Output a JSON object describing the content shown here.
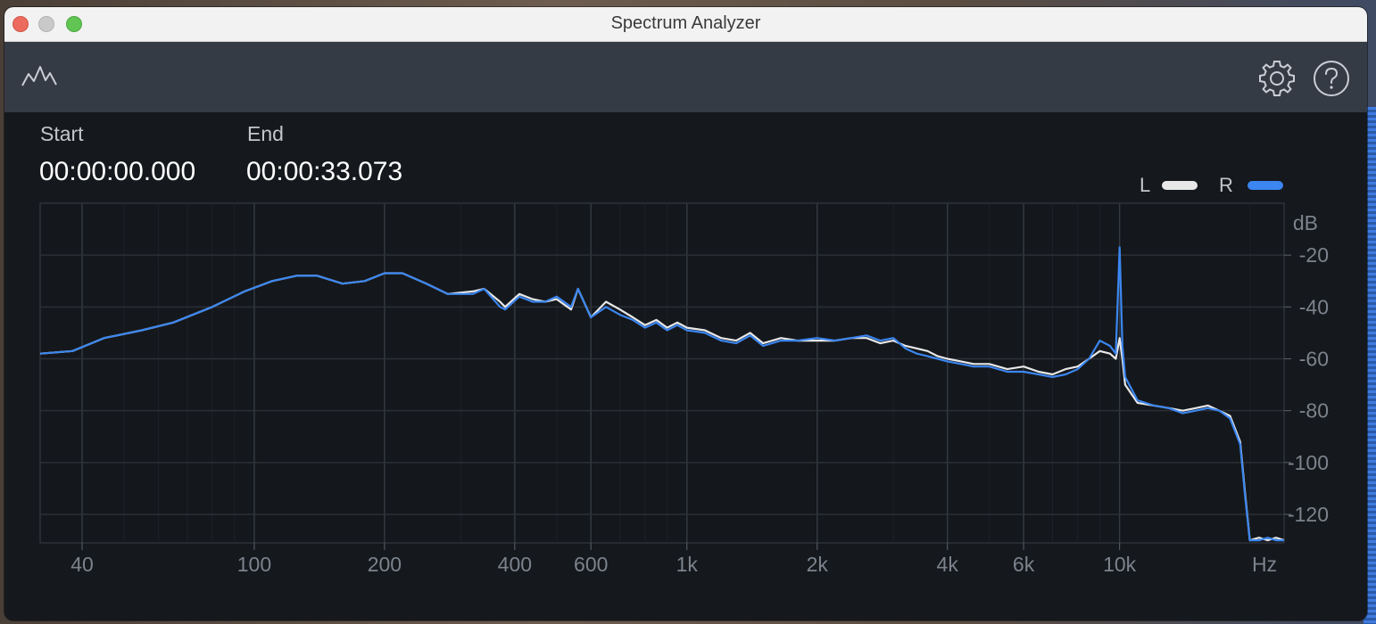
{
  "window": {
    "title": "Spectrum Analyzer"
  },
  "toolbar": {
    "left_icon": "spectrum-waveform-icon",
    "right_icons": [
      "gear-icon",
      "help-icon"
    ]
  },
  "time_range": {
    "start_label": "Start",
    "start_value": "00:00:00.000",
    "end_label": "End",
    "end_value": "00:00:33.073"
  },
  "legend": {
    "left_label": "L",
    "left_color": "#e8e8e8",
    "right_label": "R",
    "right_color": "#3b86f0"
  },
  "chart_data": {
    "type": "line",
    "x_scale": "log",
    "y_unit": "dB",
    "x_unit": "Hz",
    "xlim": [
      32,
      24000
    ],
    "ylim": [
      -131,
      0
    ],
    "x_ticks": [
      {
        "value": 40,
        "label": "40"
      },
      {
        "value": 100,
        "label": "100"
      },
      {
        "value": 200,
        "label": "200"
      },
      {
        "value": 400,
        "label": "400"
      },
      {
        "value": 600,
        "label": "600"
      },
      {
        "value": 1000,
        "label": "1k"
      },
      {
        "value": 2000,
        "label": "2k"
      },
      {
        "value": 4000,
        "label": "4k"
      },
      {
        "value": 6000,
        "label": "6k"
      },
      {
        "value": 10000,
        "label": "10k"
      }
    ],
    "y_ticks": [
      {
        "value": -20,
        "label": "-20"
      },
      {
        "value": -40,
        "label": "-40"
      },
      {
        "value": -60,
        "label": "-60"
      },
      {
        "value": -80,
        "label": "-80"
      },
      {
        "value": -100,
        "label": "-100"
      },
      {
        "value": -120,
        "label": "-120"
      }
    ],
    "grid": true,
    "series": [
      {
        "name": "L",
        "color": "#e8e8e8",
        "points": [
          [
            32,
            -58
          ],
          [
            38,
            -57
          ],
          [
            45,
            -52
          ],
          [
            55,
            -49
          ],
          [
            65,
            -46
          ],
          [
            80,
            -40
          ],
          [
            95,
            -34
          ],
          [
            110,
            -30
          ],
          [
            125,
            -28
          ],
          [
            140,
            -28
          ],
          [
            160,
            -31
          ],
          [
            180,
            -30
          ],
          [
            200,
            -27
          ],
          [
            220,
            -27
          ],
          [
            250,
            -31
          ],
          [
            280,
            -35
          ],
          [
            320,
            -34
          ],
          [
            340,
            -33
          ],
          [
            370,
            -38
          ],
          [
            380,
            -40
          ],
          [
            410,
            -35
          ],
          [
            440,
            -37
          ],
          [
            470,
            -38
          ],
          [
            500,
            -37
          ],
          [
            540,
            -41
          ],
          [
            560,
            -33
          ],
          [
            600,
            -44
          ],
          [
            650,
            -38
          ],
          [
            700,
            -41
          ],
          [
            750,
            -44
          ],
          [
            800,
            -47
          ],
          [
            850,
            -45
          ],
          [
            900,
            -48
          ],
          [
            950,
            -46
          ],
          [
            1000,
            -48
          ],
          [
            1100,
            -49
          ],
          [
            1200,
            -52
          ],
          [
            1300,
            -53
          ],
          [
            1400,
            -50
          ],
          [
            1500,
            -54
          ],
          [
            1650,
            -52
          ],
          [
            1800,
            -53
          ],
          [
            2000,
            -53
          ],
          [
            2200,
            -53
          ],
          [
            2400,
            -52
          ],
          [
            2600,
            -52
          ],
          [
            2800,
            -54
          ],
          [
            3000,
            -53
          ],
          [
            3200,
            -55
          ],
          [
            3400,
            -56
          ],
          [
            3600,
            -57
          ],
          [
            3800,
            -59
          ],
          [
            4000,
            -60
          ],
          [
            4300,
            -61
          ],
          [
            4600,
            -62
          ],
          [
            5000,
            -62
          ],
          [
            5500,
            -64
          ],
          [
            6000,
            -63
          ],
          [
            6500,
            -65
          ],
          [
            7000,
            -66
          ],
          [
            7500,
            -64
          ],
          [
            8000,
            -63
          ],
          [
            8500,
            -60
          ],
          [
            9000,
            -57
          ],
          [
            9500,
            -58
          ],
          [
            9800,
            -60
          ],
          [
            10000,
            -52
          ],
          [
            10150,
            -60
          ],
          [
            10300,
            -70
          ],
          [
            11000,
            -77
          ],
          [
            12000,
            -78
          ],
          [
            13000,
            -79
          ],
          [
            14000,
            -80
          ],
          [
            15000,
            -79
          ],
          [
            16000,
            -78
          ],
          [
            17000,
            -80
          ],
          [
            18000,
            -82
          ],
          [
            19000,
            -92
          ],
          [
            19500,
            -112
          ],
          [
            20000,
            -130
          ],
          [
            21000,
            -129
          ],
          [
            22000,
            -130
          ],
          [
            23000,
            -129
          ],
          [
            24000,
            -130
          ]
        ]
      },
      {
        "name": "R",
        "color": "#3b86f0",
        "points": [
          [
            32,
            -58
          ],
          [
            38,
            -57
          ],
          [
            45,
            -52
          ],
          [
            55,
            -49
          ],
          [
            65,
            -46
          ],
          [
            80,
            -40
          ],
          [
            95,
            -34
          ],
          [
            110,
            -30
          ],
          [
            125,
            -28
          ],
          [
            140,
            -28
          ],
          [
            160,
            -31
          ],
          [
            180,
            -30
          ],
          [
            200,
            -27
          ],
          [
            220,
            -27
          ],
          [
            250,
            -31
          ],
          [
            280,
            -35
          ],
          [
            320,
            -35
          ],
          [
            340,
            -33
          ],
          [
            370,
            -40
          ],
          [
            380,
            -41
          ],
          [
            410,
            -36
          ],
          [
            440,
            -38
          ],
          [
            470,
            -38
          ],
          [
            500,
            -36
          ],
          [
            540,
            -40
          ],
          [
            560,
            -33
          ],
          [
            600,
            -44
          ],
          [
            650,
            -40
          ],
          [
            700,
            -43
          ],
          [
            750,
            -45
          ],
          [
            800,
            -48
          ],
          [
            850,
            -46
          ],
          [
            900,
            -49
          ],
          [
            950,
            -47
          ],
          [
            1000,
            -49
          ],
          [
            1100,
            -50
          ],
          [
            1200,
            -53
          ],
          [
            1300,
            -54
          ],
          [
            1400,
            -51
          ],
          [
            1500,
            -55
          ],
          [
            1650,
            -53
          ],
          [
            1800,
            -53
          ],
          [
            2000,
            -52
          ],
          [
            2200,
            -53
          ],
          [
            2400,
            -52
          ],
          [
            2600,
            -51
          ],
          [
            2800,
            -53
          ],
          [
            3000,
            -52
          ],
          [
            3200,
            -56
          ],
          [
            3400,
            -58
          ],
          [
            3600,
            -59
          ],
          [
            3800,
            -60
          ],
          [
            4000,
            -61
          ],
          [
            4300,
            -62
          ],
          [
            4600,
            -63
          ],
          [
            5000,
            -63
          ],
          [
            5500,
            -65
          ],
          [
            6000,
            -65
          ],
          [
            6500,
            -66
          ],
          [
            7000,
            -67
          ],
          [
            7500,
            -66
          ],
          [
            8000,
            -64
          ],
          [
            8500,
            -60
          ],
          [
            9000,
            -53
          ],
          [
            9500,
            -55
          ],
          [
            9800,
            -58
          ],
          [
            10000,
            -17
          ],
          [
            10150,
            -55
          ],
          [
            10300,
            -67
          ],
          [
            11000,
            -76
          ],
          [
            12000,
            -78
          ],
          [
            13000,
            -79
          ],
          [
            14000,
            -81
          ],
          [
            15000,
            -80
          ],
          [
            16000,
            -79
          ],
          [
            17000,
            -80
          ],
          [
            18000,
            -83
          ],
          [
            19000,
            -93
          ],
          [
            19500,
            -113
          ],
          [
            20000,
            -130
          ],
          [
            21000,
            -130
          ],
          [
            22000,
            -129
          ],
          [
            23000,
            -130
          ],
          [
            24000,
            -130
          ]
        ]
      }
    ]
  }
}
